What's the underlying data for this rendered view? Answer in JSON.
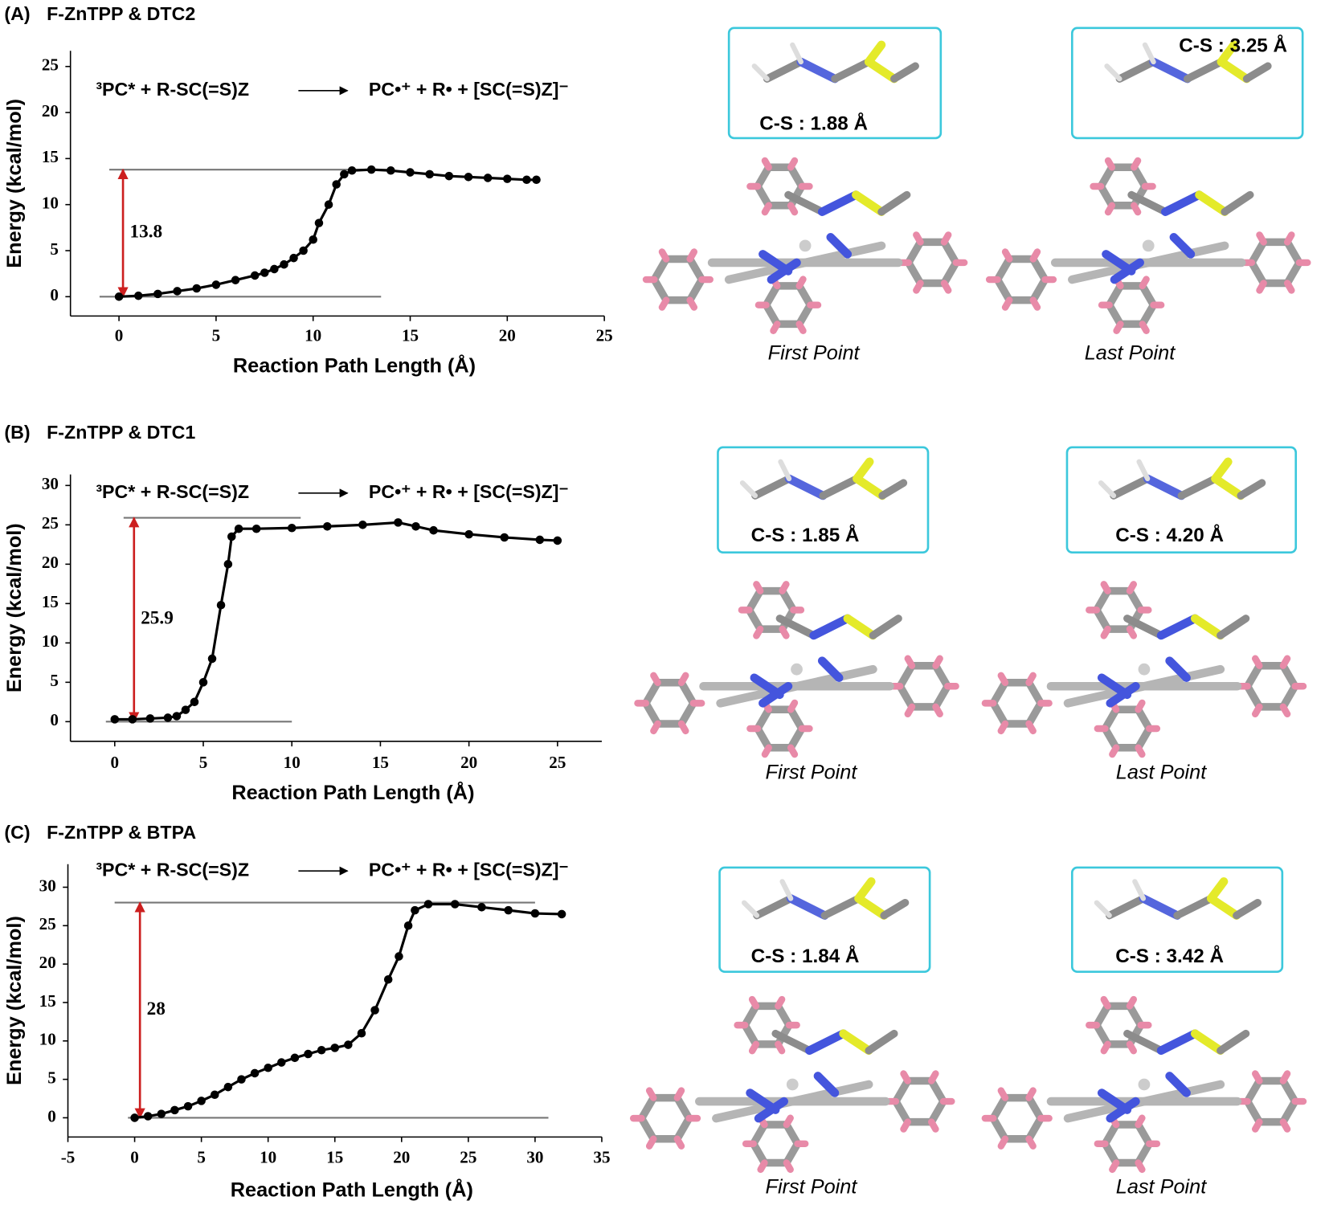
{
  "chart_data": [
    {
      "type": "line",
      "panel_label": "(A)",
      "title": "F-ZnTPP & DTC2",
      "reaction_left": "³PC* + R-SC(=S)Z",
      "reaction_right": "PC•⁺ + R• + [SC(=S)Z]⁻",
      "x_label": "Reaction Path Length (Å)",
      "y_label": "Energy (kcal/mol)",
      "xlim": [
        -2.5,
        25
      ],
      "ylim": [
        -2.1,
        26.7
      ],
      "xticks": [
        0,
        5,
        10,
        15,
        20,
        25
      ],
      "yticks": [
        0,
        5,
        10,
        15,
        20,
        25
      ],
      "color": "#000000",
      "energy_gap": [
        0,
        13.8
      ],
      "gap_color": "#cc1f1f",
      "x": [
        0,
        1,
        2,
        3,
        4,
        5,
        6,
        7,
        7.5,
        8,
        8.5,
        9,
        9.5,
        10,
        10.3,
        10.8,
        11.2,
        11.6,
        12,
        13,
        14,
        15,
        16,
        17,
        18,
        19,
        20,
        21,
        21.5
      ],
      "values": [
        0,
        0.1,
        0.3,
        0.6,
        0.9,
        1.3,
        1.8,
        2.3,
        2.6,
        3,
        3.5,
        4.2,
        5,
        6.2,
        8,
        10,
        12.2,
        13.3,
        13.7,
        13.8,
        13.7,
        13.5,
        13.3,
        13.1,
        13,
        12.9,
        12.8,
        12.7,
        12.7
      ],
      "structures": [
        {
          "bond_label": "C-S : 1.88 Å",
          "caption": "First Point"
        },
        {
          "bond_label": "C-S : 3.25 Å",
          "caption": "Last Point"
        }
      ]
    },
    {
      "type": "line",
      "panel_label": "(B)",
      "title": "F-ZnTPP & DTC1",
      "reaction_left": "³PC* + R-SC(=S)Z",
      "reaction_right": "PC•⁺ + R• + [SC(=S)Z]⁻",
      "x_label": "Reaction Path Length (Å)",
      "y_label": "Energy (kcal/mol)",
      "xlim": [
        -2.5,
        27.5
      ],
      "ylim": [
        -2.5,
        31.4
      ],
      "xticks": [
        0,
        5,
        10,
        15,
        20,
        25
      ],
      "yticks": [
        0,
        5,
        10,
        15,
        20,
        25,
        30
      ],
      "color": "#000000",
      "energy_gap": [
        0,
        25.9
      ],
      "gap_color": "#cc1f1f",
      "x": [
        0,
        1,
        2,
        3,
        3.5,
        4,
        4.5,
        5,
        5.5,
        6,
        6.4,
        6.6,
        7,
        8,
        10,
        12,
        14,
        16,
        17,
        18,
        20,
        22,
        24,
        25
      ],
      "values": [
        0.3,
        0.3,
        0.4,
        0.5,
        0.7,
        1.5,
        2.5,
        5,
        8,
        14.8,
        20,
        23.5,
        24.5,
        24.5,
        24.6,
        24.8,
        25,
        25.3,
        24.8,
        24.3,
        23.8,
        23.4,
        23.1,
        23
      ],
      "structures": [
        {
          "bond_label": "C-S : 1.85 Å",
          "caption": "First Point"
        },
        {
          "bond_label": "C-S : 4.20 Å",
          "caption": "Last Point"
        }
      ]
    },
    {
      "type": "line",
      "panel_label": "(C)",
      "title": "F-ZnTPP & BTPA",
      "reaction_left": "³PC* + R-SC(=S)Z",
      "reaction_right": "PC•⁺ + R• + [SC(=S)Z]⁻",
      "x_label": "Reaction Path Length (Å)",
      "y_label": "Energy (kcal/mol)",
      "xlim": [
        -5,
        35
      ],
      "ylim": [
        -2.5,
        33
      ],
      "xticks": [
        -5,
        0,
        5,
        10,
        15,
        20,
        25,
        30,
        35
      ],
      "yticks": [
        0,
        5,
        10,
        15,
        20,
        25,
        30
      ],
      "color": "#000000",
      "energy_gap": [
        0,
        28.0
      ],
      "gap_color": "#cc1f1f",
      "x": [
        0,
        1,
        2,
        3,
        4,
        5,
        6,
        7,
        8,
        9,
        10,
        11,
        12,
        13,
        14,
        15,
        16,
        17,
        18,
        19,
        19.8,
        20.5,
        21,
        22,
        24,
        26,
        28,
        30,
        32
      ],
      "values": [
        0,
        0.2,
        0.5,
        1,
        1.5,
        2.2,
        3,
        4,
        5,
        5.8,
        6.5,
        7.2,
        7.8,
        8.3,
        8.8,
        9.1,
        9.5,
        11,
        14,
        18,
        21,
        25,
        27,
        27.8,
        27.8,
        27.4,
        27,
        26.6,
        26.5
      ],
      "structures": [
        {
          "bond_label": "C-S : 1.84 Å",
          "caption": "First Point"
        },
        {
          "bond_label": "C-S : 3.42 Å",
          "caption": "Last Point"
        }
      ]
    }
  ]
}
